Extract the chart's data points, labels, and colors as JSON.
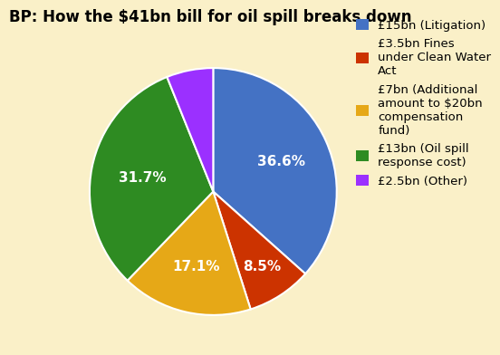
{
  "title": "BP: How the $41bn bill for oil spill breaks down",
  "slices": [
    36.6,
    8.5,
    17.1,
    31.7,
    6.1
  ],
  "colors": [
    "#4472C4",
    "#CC3300",
    "#E6A817",
    "#2E8B22",
    "#9B30FF"
  ],
  "pct_labels": [
    "36.6%",
    "8.5%",
    "17.1%",
    "31.7%",
    ""
  ],
  "pct_radii": [
    0.6,
    0.72,
    0.62,
    0.58,
    0.0
  ],
  "legend_labels": [
    "£15bn (Litigation)",
    "£3.5bn Fines\nunder Clean Water\nAct",
    "£7bn (Additional\namount to $20bn\ncompensation\nfund)",
    "£13bn (Oil spill\nresponse cost)",
    "£2.5bn (Other)"
  ],
  "bg_color": "#FAF0C8",
  "title_fontsize": 12,
  "label_fontsize": 11,
  "legend_fontsize": 9.5,
  "startangle": 90
}
